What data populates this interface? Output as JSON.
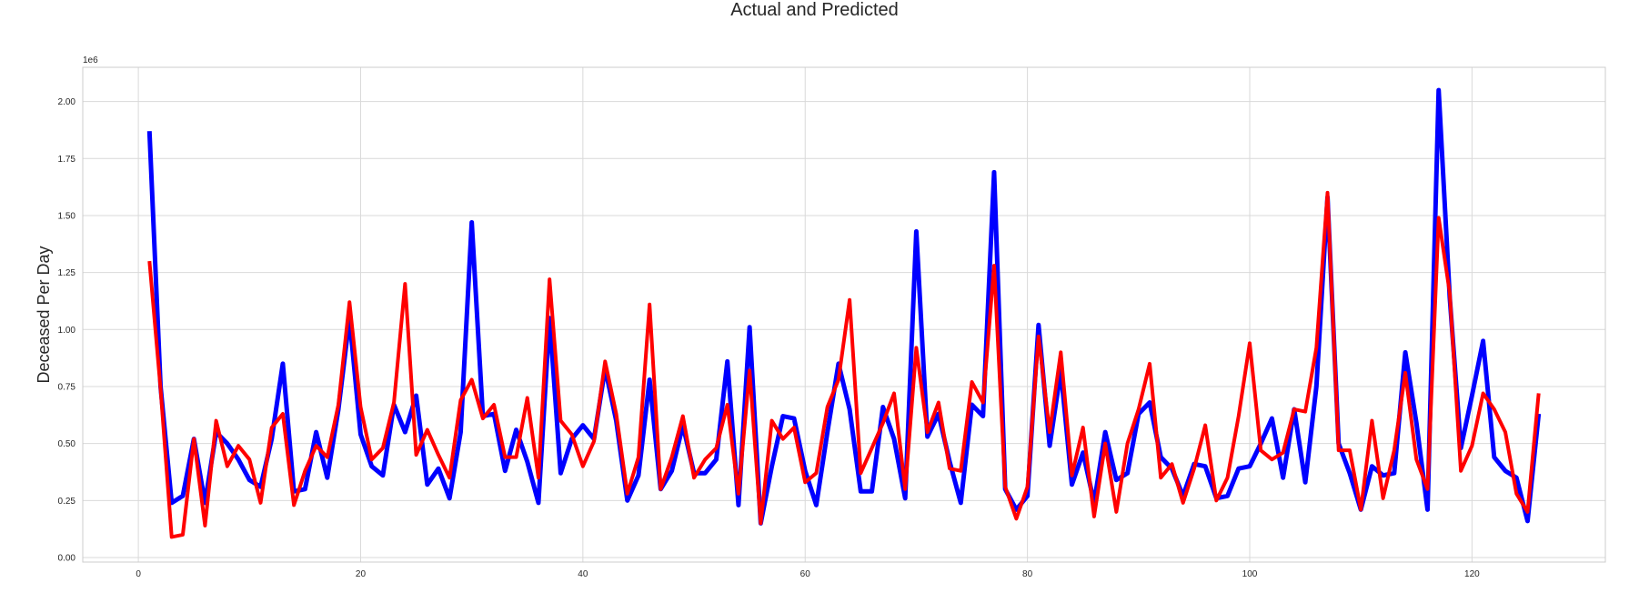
{
  "chart_data": {
    "type": "line",
    "title": "Actual and Predicted",
    "xlabel": "",
    "ylabel": "Deceased Per Day",
    "y_scale_note": "1e6",
    "xlim": [
      -5,
      132
    ],
    "ylim": [
      -0.02,
      2.15
    ],
    "xticks": [
      0,
      20,
      40,
      60,
      80,
      100,
      120
    ],
    "yticks": [
      0.0,
      0.25,
      0.5,
      0.75,
      1.0,
      1.25,
      1.5,
      1.75,
      2.0
    ],
    "ytick_labels": [
      "0.00",
      "0.25",
      "0.50",
      "0.75",
      "1.00",
      "1.25",
      "1.50",
      "1.75",
      "2.00"
    ],
    "grid": true,
    "x_start": 1,
    "series": [
      {
        "color": "#0000ff",
        "values": [
          1.87,
          0.75,
          0.24,
          0.27,
          0.52,
          0.24,
          0.55,
          0.5,
          0.43,
          0.34,
          0.31,
          0.52,
          0.85,
          0.29,
          0.3,
          0.55,
          0.35,
          0.65,
          1.05,
          0.54,
          0.4,
          0.36,
          0.67,
          0.55,
          0.71,
          0.32,
          0.39,
          0.26,
          0.55,
          1.47,
          0.62,
          0.63,
          0.38,
          0.56,
          0.42,
          0.24,
          1.05,
          0.37,
          0.52,
          0.58,
          0.52,
          0.83,
          0.6,
          0.25,
          0.36,
          0.78,
          0.3,
          0.38,
          0.58,
          0.37,
          0.37,
          0.43,
          0.86,
          0.23,
          1.01,
          0.15,
          0.4,
          0.62,
          0.61,
          0.38,
          0.23,
          0.55,
          0.85,
          0.65,
          0.29,
          0.29,
          0.66,
          0.52,
          0.26,
          1.43,
          0.53,
          0.63,
          0.42,
          0.24,
          0.67,
          0.62,
          1.69,
          0.3,
          0.21,
          0.27,
          1.02,
          0.49,
          0.82,
          0.32,
          0.46,
          0.24,
          0.55,
          0.34,
          0.37,
          0.63,
          0.68,
          0.44,
          0.39,
          0.27,
          0.41,
          0.4,
          0.26,
          0.27,
          0.39,
          0.4,
          0.5,
          0.61,
          0.35,
          0.65,
          0.33,
          0.75,
          1.58,
          0.5,
          0.37,
          0.21,
          0.4,
          0.36,
          0.37,
          0.9,
          0.59,
          0.21,
          2.05,
          1.14,
          0.48,
          0.71,
          0.95,
          0.44,
          0.38,
          0.35,
          0.16,
          0.63
        ]
      },
      {
        "color": "#ff0000",
        "values": [
          1.3,
          0.74,
          0.09,
          0.1,
          0.52,
          0.14,
          0.6,
          0.4,
          0.49,
          0.43,
          0.24,
          0.57,
          0.63,
          0.23,
          0.38,
          0.49,
          0.44,
          0.67,
          1.12,
          0.66,
          0.43,
          0.48,
          0.68,
          1.2,
          0.45,
          0.56,
          0.45,
          0.35,
          0.69,
          0.78,
          0.61,
          0.67,
          0.44,
          0.44,
          0.7,
          0.35,
          1.22,
          0.6,
          0.54,
          0.4,
          0.51,
          0.86,
          0.63,
          0.28,
          0.44,
          1.11,
          0.3,
          0.44,
          0.62,
          0.35,
          0.43,
          0.48,
          0.67,
          0.28,
          0.82,
          0.15,
          0.6,
          0.52,
          0.57,
          0.33,
          0.37,
          0.66,
          0.78,
          1.13,
          0.37,
          0.48,
          0.59,
          0.72,
          0.3,
          0.92,
          0.55,
          0.68,
          0.39,
          0.38,
          0.77,
          0.68,
          1.28,
          0.31,
          0.17,
          0.31,
          0.97,
          0.55,
          0.9,
          0.36,
          0.57,
          0.18,
          0.5,
          0.2,
          0.5,
          0.65,
          0.85,
          0.35,
          0.41,
          0.24,
          0.39,
          0.58,
          0.25,
          0.35,
          0.62,
          0.94,
          0.47,
          0.43,
          0.46,
          0.65,
          0.64,
          0.92,
          1.6,
          0.47,
          0.47,
          0.21,
          0.6,
          0.26,
          0.47,
          0.81,
          0.43,
          0.3,
          1.49,
          1.16,
          0.38,
          0.49,
          0.72,
          0.65,
          0.55,
          0.28,
          0.2,
          0.72
        ]
      }
    ]
  }
}
